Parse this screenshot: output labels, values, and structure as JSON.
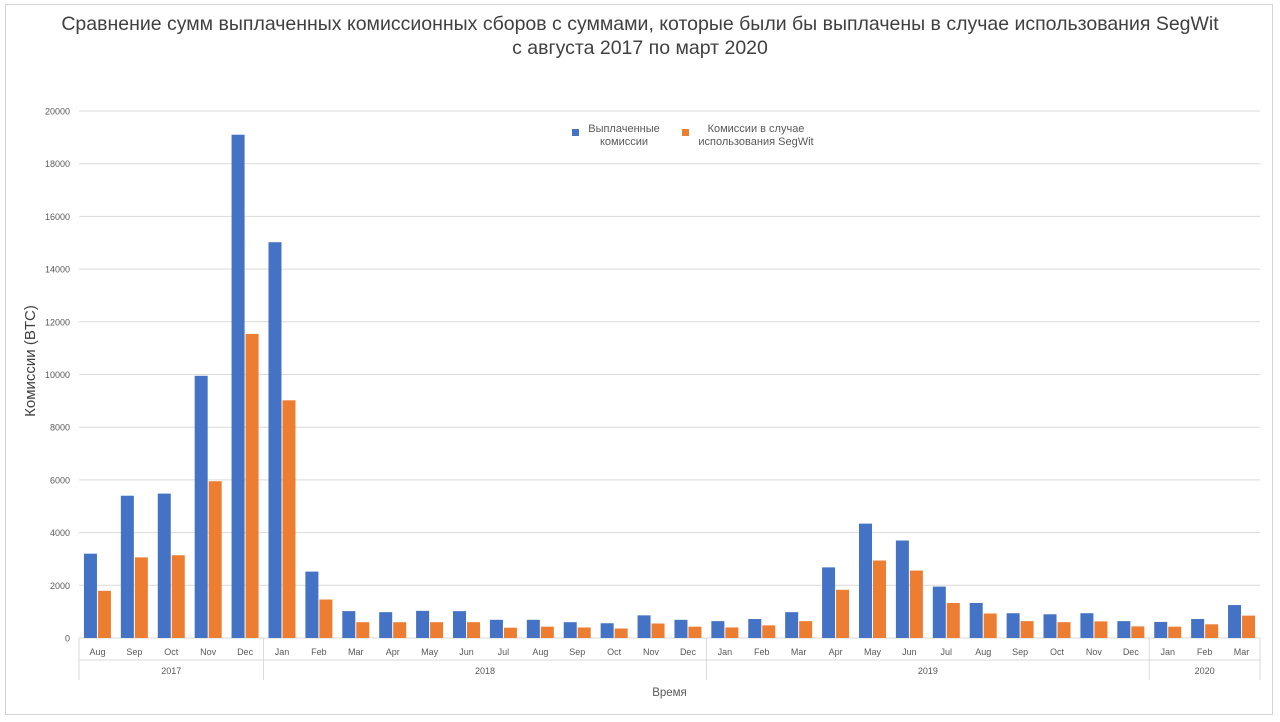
{
  "colors": {
    "paid": "#4472C4",
    "segwit": "#ED7D31",
    "grid": "#d9d9d9",
    "text": "#595959"
  },
  "chart_data": {
    "type": "bar",
    "title_lines": [
      "Сравнение сумм выплаченных комиссионных сборов с суммами, которые были бы выплачены в случае использования SegWit",
      "с августа 2017 по март 2020"
    ],
    "xlabel": "Время",
    "ylabel": "Комиссии (BTC)",
    "ylim": [
      0,
      20000
    ],
    "yticks": [
      0,
      2000,
      4000,
      6000,
      8000,
      10000,
      12000,
      14000,
      16000,
      18000,
      20000
    ],
    "grid": true,
    "legend_position": "top-center",
    "categories": [
      "Aug",
      "Sep",
      "Oct",
      "Nov",
      "Dec",
      "Jan",
      "Feb",
      "Mar",
      "Apr",
      "May",
      "Jun",
      "Jul",
      "Aug",
      "Sep",
      "Oct",
      "Nov",
      "Dec",
      "Jan",
      "Feb",
      "Mar",
      "Apr",
      "May",
      "Jun",
      "Jul",
      "Aug",
      "Sep",
      "Oct",
      "Nov",
      "Dec",
      "Jan",
      "Feb",
      "Mar"
    ],
    "years": [
      {
        "label": "2017",
        "count": 5
      },
      {
        "label": "2018",
        "count": 12
      },
      {
        "label": "2019",
        "count": 12
      },
      {
        "label": "2020",
        "count": 3
      }
    ],
    "series": [
      {
        "name": "Выплаченные комиссии",
        "color": "#4472C4",
        "values": [
          3200,
          5400,
          5480,
          9950,
          19100,
          15020,
          2520,
          1020,
          980,
          1030,
          1020,
          690,
          690,
          600,
          560,
          860,
          690,
          640,
          720,
          980,
          2680,
          4340,
          3700,
          1950,
          1330,
          940,
          900,
          940,
          640,
          610,
          720,
          1250
        ]
      },
      {
        "name": "Комиссии в случае использования SegWit",
        "color": "#ED7D31",
        "values": [
          1790,
          3060,
          3140,
          5950,
          11540,
          9020,
          1460,
          600,
          600,
          600,
          600,
          390,
          430,
          400,
          360,
          550,
          430,
          400,
          480,
          640,
          1830,
          2940,
          2560,
          1330,
          930,
          640,
          600,
          630,
          440,
          430,
          520,
          850
        ]
      }
    ]
  }
}
